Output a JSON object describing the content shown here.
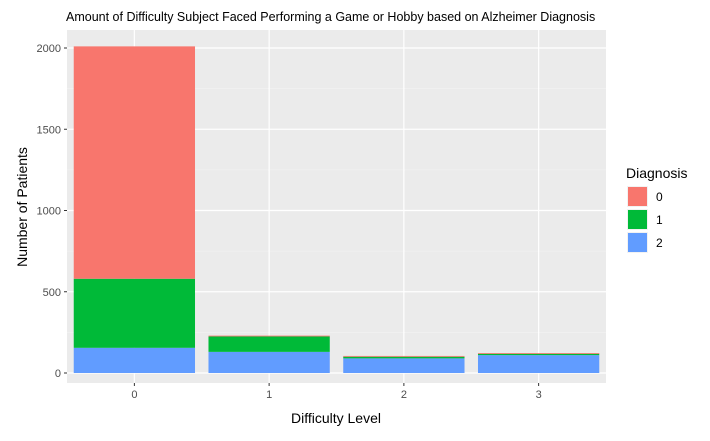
{
  "chart_data": {
    "type": "bar",
    "stacked": true,
    "title": "Amount of Difficulty Subject Faced Performing a Game or Hobby based on Alzheimer Diagnosis",
    "xlabel": "Difficulty Level",
    "ylabel": "Number of Patients",
    "categories": [
      "0",
      "1",
      "2",
      "3"
    ],
    "ylim": [
      0,
      2100
    ],
    "yticks": [
      0,
      500,
      1000,
      1500,
      2000
    ],
    "ytick_labels": [
      "0",
      "500",
      "1000",
      "1500",
      "2000"
    ],
    "grid": true,
    "legend": {
      "title": "Diagnosis",
      "position": "right"
    },
    "stack_order": [
      "2",
      "1",
      "0"
    ],
    "series": [
      {
        "name": "0",
        "color": "#F8766D",
        "values": [
          1430,
          5,
          5,
          5
        ]
      },
      {
        "name": "1",
        "color": "#00BA38",
        "values": [
          425,
          95,
          10,
          8
        ]
      },
      {
        "name": "2",
        "color": "#619CFF",
        "values": [
          155,
          130,
          90,
          110
        ]
      }
    ]
  }
}
